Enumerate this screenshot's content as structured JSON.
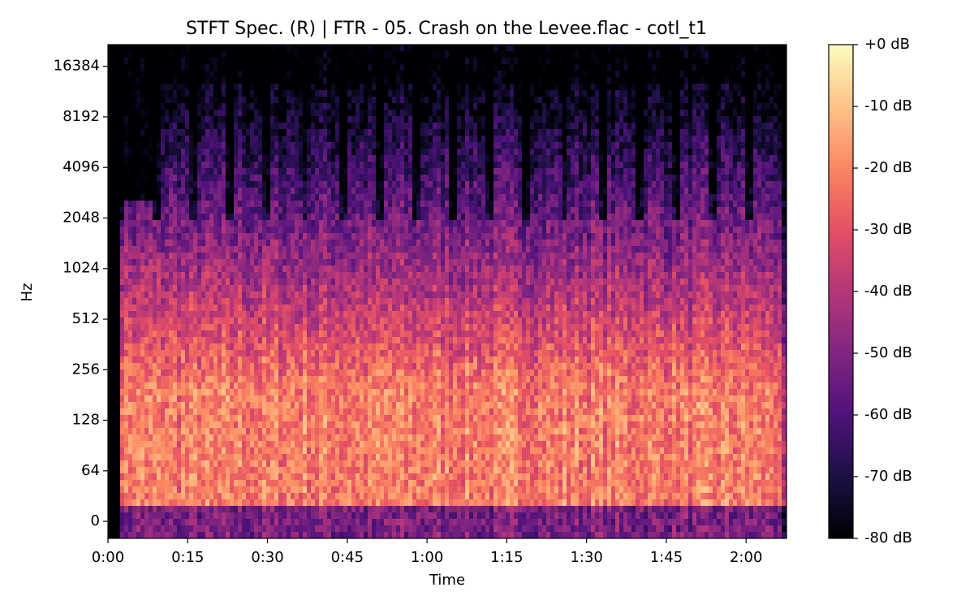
{
  "chart_data": {
    "type": "spectrogram",
    "title": "STFT Spec. (R) | FTR - 05. Crash on the Levee.flac - cotl_t1",
    "x_label": "Time",
    "y_label": "Hz",
    "xlim": [
      0,
      127.6
    ],
    "xticks": [
      {
        "value": 0,
        "label": "0:00"
      },
      {
        "value": 15,
        "label": "0:15"
      },
      {
        "value": 30,
        "label": "0:30"
      },
      {
        "value": 45,
        "label": "0:45"
      },
      {
        "value": 60,
        "label": "1:00"
      },
      {
        "value": 75,
        "label": "1:15"
      },
      {
        "value": 90,
        "label": "1:30"
      },
      {
        "value": 105,
        "label": "1:45"
      },
      {
        "value": 120,
        "label": "2:00"
      }
    ],
    "yscale": "symlog",
    "ylinthresh": 64,
    "ylim": [
      -21.5,
      22050
    ],
    "yticks": [
      0,
      64,
      128,
      256,
      512,
      1024,
      2048,
      4096,
      8192,
      16384
    ],
    "colormap": "magma",
    "clim": [
      -80,
      0
    ],
    "cticks": [
      {
        "value": 0,
        "label": "+0 dB"
      },
      {
        "value": -10,
        "label": "-10 dB"
      },
      {
        "value": -20,
        "label": "-20 dB"
      },
      {
        "value": -30,
        "label": "-30 dB"
      },
      {
        "value": -40,
        "label": "-40 dB"
      },
      {
        "value": -50,
        "label": "-50 dB"
      },
      {
        "value": -60,
        "label": "-60 dB"
      },
      {
        "value": -70,
        "label": "-70 dB"
      },
      {
        "value": -80,
        "label": "-80 dB"
      }
    ]
  }
}
